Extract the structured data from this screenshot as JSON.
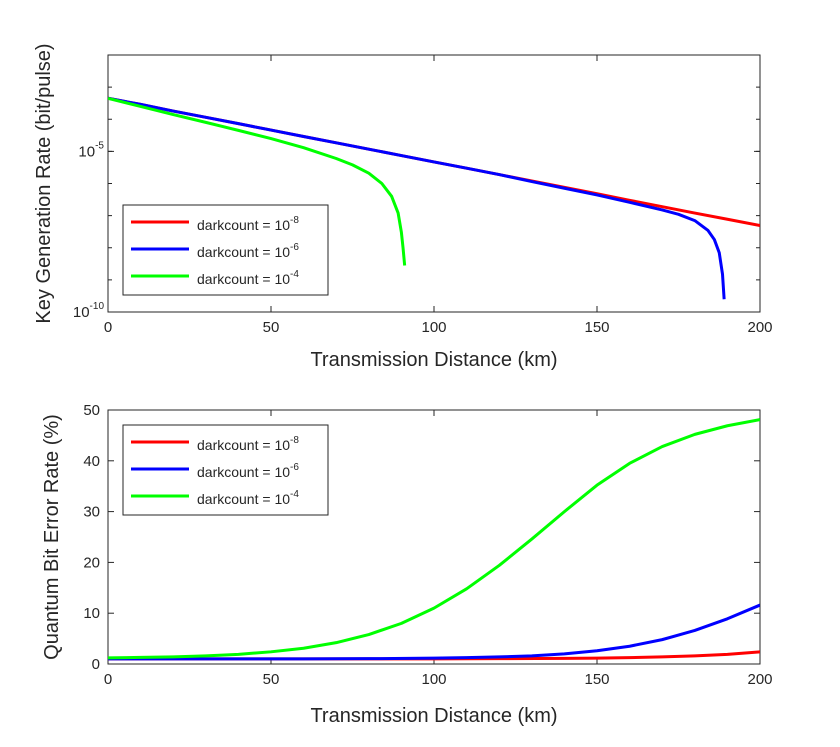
{
  "chart_data": [
    {
      "type": "line",
      "xlabel": "Transmission Distance (km)",
      "ylabel": "Key Generation Rate (bit/pulse)",
      "xlim": [
        0,
        200
      ],
      "ylim": [
        1e-10,
        0.01
      ],
      "yscale": "log",
      "x_ticks": [
        "0",
        "50",
        "100",
        "150",
        "200"
      ],
      "y_ticks": [
        {
          "base": "10",
          "exp": "-5"
        },
        {
          "base": "10",
          "exp": "-10"
        }
      ],
      "grid": false,
      "legend_position": "bottom-left",
      "series": [
        {
          "name_prefix": "darkcount = 10",
          "name_exp": "-8",
          "color": "#ff0000",
          "x": [
            0,
            10,
            20,
            30,
            40,
            50,
            60,
            70,
            80,
            90,
            100,
            110,
            120,
            130,
            140,
            150,
            160,
            170,
            180,
            190,
            200
          ],
          "y": [
            0.00045,
            0.00029,
            0.00018,
            0.000115,
            7.3e-05,
            4.6e-05,
            2.9e-05,
            1.85e-05,
            1.17e-05,
            7.4e-06,
            4.7e-06,
            3e-06,
            1.9e-06,
            1.2e-06,
            7.6e-07,
            4.8e-07,
            3e-07,
            1.9e-07,
            1.2e-07,
            7.7e-08,
            4.9e-08
          ]
        },
        {
          "name_prefix": "darkcount = 10",
          "name_exp": "-6",
          "color": "#0000ff",
          "x": [
            0,
            10,
            20,
            30,
            40,
            50,
            60,
            70,
            80,
            90,
            100,
            110,
            120,
            130,
            140,
            150,
            160,
            170,
            175,
            180,
            184,
            186,
            187.5,
            188.5,
            189
          ],
          "y": [
            0.00045,
            0.00029,
            0.00018,
            0.000115,
            7.3e-05,
            4.6e-05,
            2.9e-05,
            1.85e-05,
            1.17e-05,
            7.4e-06,
            4.7e-06,
            3e-06,
            1.9e-06,
            1.15e-06,
            7.1e-07,
            4.4e-07,
            2.6e-07,
            1.5e-07,
            1.1e-07,
            7e-08,
            3.5e-08,
            1.8e-08,
            7e-09,
            1.5e-09,
            2.5e-10
          ]
        },
        {
          "name_prefix": "darkcount = 10",
          "name_exp": "-4",
          "color": "#00ff00",
          "x": [
            0,
            10,
            20,
            30,
            40,
            50,
            60,
            70,
            75,
            80,
            84,
            87,
            89,
            90,
            90.5,
            91
          ],
          "y": [
            0.00045,
            0.00025,
            0.00014,
            8e-05,
            4.5e-05,
            2.5e-05,
            1.3e-05,
            6e-06,
            3.8e-06,
            2.1e-06,
            1e-06,
            4e-07,
            1.2e-07,
            3e-08,
            1e-08,
            2.8e-09
          ]
        }
      ]
    },
    {
      "type": "line",
      "xlabel": "Transmission Distance (km)",
      "ylabel": "Quantum Bit Error Rate (%)",
      "xlim": [
        0,
        200
      ],
      "ylim": [
        0,
        50
      ],
      "x_ticks": [
        "0",
        "50",
        "100",
        "150",
        "200"
      ],
      "y_ticks": [
        "0",
        "10",
        "20",
        "30",
        "40",
        "50"
      ],
      "grid": false,
      "legend_position": "top-left",
      "series": [
        {
          "name_prefix": "darkcount = 10",
          "name_exp": "-8",
          "color": "#ff0000",
          "x": [
            0,
            20,
            40,
            60,
            80,
            100,
            120,
            140,
            150,
            160,
            170,
            180,
            190,
            200
          ],
          "y": [
            1.0,
            1.0,
            1.0,
            1.0,
            1.0,
            1.0,
            1.05,
            1.1,
            1.15,
            1.25,
            1.4,
            1.6,
            1.9,
            2.4
          ]
        },
        {
          "name_prefix": "darkcount = 10",
          "name_exp": "-6",
          "color": "#0000ff",
          "x": [
            0,
            20,
            40,
            60,
            80,
            100,
            110,
            120,
            130,
            140,
            150,
            160,
            170,
            180,
            190,
            200
          ],
          "y": [
            1.0,
            1.0,
            1.0,
            1.0,
            1.05,
            1.15,
            1.25,
            1.4,
            1.6,
            2.0,
            2.6,
            3.5,
            4.8,
            6.6,
            8.9,
            11.6
          ]
        },
        {
          "name_prefix": "darkcount = 10",
          "name_exp": "-4",
          "color": "#00ff00",
          "x": [
            0,
            10,
            20,
            30,
            40,
            50,
            60,
            70,
            80,
            90,
            100,
            110,
            120,
            130,
            140,
            150,
            160,
            170,
            180,
            190,
            200
          ],
          "y": [
            1.2,
            1.3,
            1.4,
            1.6,
            1.9,
            2.4,
            3.1,
            4.2,
            5.8,
            8.0,
            11.0,
            14.8,
            19.4,
            24.6,
            30.0,
            35.2,
            39.5,
            42.8,
            45.2,
            46.9,
            48.1
          ]
        }
      ]
    }
  ]
}
